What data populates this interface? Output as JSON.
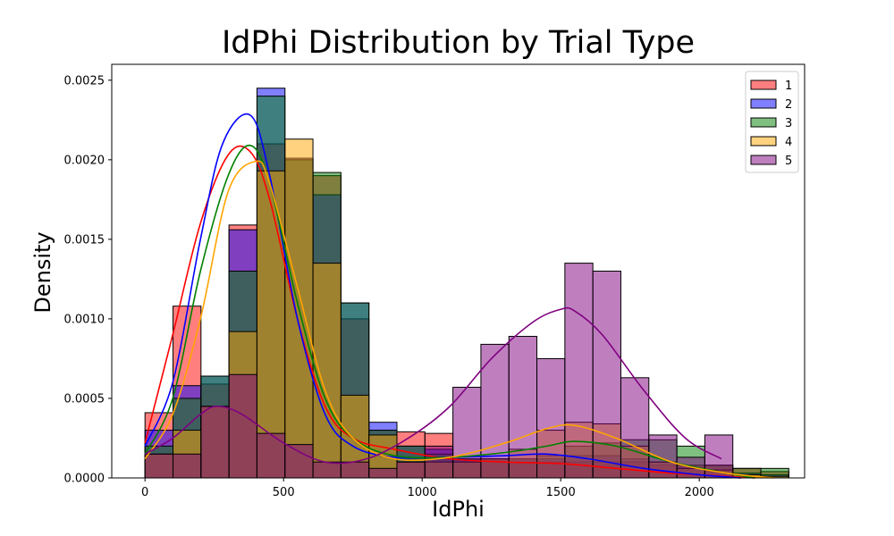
{
  "chart_data": {
    "type": "histogram",
    "title": "IdPhi Distribution by Trial Type",
    "xlabel": "IdPhi",
    "ylabel": "Density",
    "xlim": [
      -120,
      2380
    ],
    "ylim": [
      0,
      0.0026
    ],
    "xticks": [
      {
        "value": 0,
        "label": "0"
      },
      {
        "value": 500,
        "label": "500"
      },
      {
        "value": 1000,
        "label": "1000"
      },
      {
        "value": 1500,
        "label": "1500"
      },
      {
        "value": 2000,
        "label": "2000"
      }
    ],
    "yticks": [
      {
        "value": 0,
        "label": "0.0000"
      },
      {
        "value": 0.0005,
        "label": "0.0005"
      },
      {
        "value": 0.001,
        "label": "0.0010"
      },
      {
        "value": 0.0015,
        "label": "0.0015"
      },
      {
        "value": 0.002,
        "label": "0.0020"
      },
      {
        "value": 0.0025,
        "label": "0.0025"
      }
    ],
    "grid": false,
    "legend_position": "top-right",
    "bin_width": 101,
    "series": [
      {
        "name": "1",
        "color": "#ff0000",
        "opacity": 0.5,
        "bin_start": 0,
        "values": [
          0.00041,
          0.00108,
          0.00059,
          0.00159,
          0.0021,
          0.002,
          0.0019,
          0.001,
          0.0003,
          0.00029,
          0.00028,
          0.00012,
          0.00012,
          0.0001,
          0.0001,
          0.0001,
          0.0001,
          0.0001,
          8e-05,
          8e-05,
          8e-05,
          6e-05,
          4e-05
        ],
        "kde_x": [
          0,
          100,
          200,
          300,
          380,
          450,
          550,
          650,
          750,
          900,
          1100,
          1300,
          1500,
          1700,
          1900,
          2100,
          2200
        ],
        "kde_y": [
          0.00022,
          0.0009,
          0.0016,
          0.00203,
          0.00205,
          0.00175,
          0.001,
          0.00045,
          0.00025,
          0.00018,
          0.00012,
          0.0001,
          9e-05,
          6e-05,
          3e-05,
          1e-05,
          0.0
        ]
      },
      {
        "name": "2",
        "color": "#0000ff",
        "opacity": 0.5,
        "bin_start": 0,
        "values": [
          0.0003,
          0.00058,
          0.00064,
          0.00156,
          0.00245,
          0.00201,
          0.00178,
          0.0011,
          0.00035,
          0.0002,
          0.00018,
          0.00012,
          0.00012,
          0.00012,
          0.00012,
          0.00014,
          0.00014,
          0.00012,
          0.0001,
          6e-05,
          4e-05,
          3e-05,
          2e-05
        ],
        "kde_x": [
          0,
          100,
          200,
          280,
          380,
          450,
          550,
          650,
          750,
          900,
          1100,
          1300,
          1450,
          1600,
          1800,
          2000,
          2150
        ],
        "kde_y": [
          0.0002,
          0.0006,
          0.0015,
          0.0021,
          0.00228,
          0.0019,
          0.001,
          0.0004,
          0.0002,
          0.00013,
          0.00013,
          0.00014,
          0.00015,
          0.00012,
          6e-05,
          2e-05,
          0.0
        ]
      },
      {
        "name": "3",
        "color": "#008000",
        "opacity": 0.5,
        "bin_start": 0,
        "values": [
          0.0002,
          0.0005,
          0.00064,
          0.0013,
          0.0024,
          0.002,
          0.00192,
          0.0011,
          0.0003,
          0.0002,
          0.00015,
          0.00012,
          0.00012,
          0.00012,
          0.00014,
          0.0002,
          0.00022,
          0.00024,
          0.00024,
          0.0002,
          8e-05,
          6e-05,
          6e-05
        ],
        "kde_x": [
          0,
          100,
          200,
          300,
          380,
          450,
          550,
          650,
          750,
          900,
          1100,
          1300,
          1450,
          1550,
          1700,
          1900,
          2100,
          2200
        ],
        "kde_y": [
          0.00015,
          0.0005,
          0.0013,
          0.0019,
          0.00209,
          0.00185,
          0.0011,
          0.0005,
          0.00025,
          0.00014,
          0.00013,
          0.00016,
          0.0002,
          0.00023,
          0.0002,
          0.0001,
          3e-05,
          0.0
        ]
      },
      {
        "name": "4",
        "color": "#ffa500",
        "opacity": 0.5,
        "bin_start": 0,
        "values": [
          0.00015,
          0.0003,
          0.00045,
          0.00092,
          0.00193,
          0.00213,
          0.00135,
          0.00052,
          0.00027,
          0.0001,
          0.0001,
          0.0001,
          0.00012,
          0.00018,
          0.0003,
          0.00035,
          0.00034,
          0.0002,
          0.0001,
          6e-05,
          5e-05,
          2e-05,
          1e-05
        ],
        "kde_x": [
          0,
          100,
          200,
          300,
          400,
          450,
          550,
          650,
          750,
          900,
          1100,
          1300,
          1450,
          1550,
          1700,
          1900,
          2100,
          2270
        ],
        "kde_y": [
          0.00012,
          0.0004,
          0.001,
          0.0018,
          0.00199,
          0.00185,
          0.0012,
          0.00055,
          0.00025,
          0.00012,
          0.00013,
          0.00022,
          0.00031,
          0.00033,
          0.00025,
          0.0001,
          3e-05,
          0.0
        ]
      },
      {
        "name": "5",
        "color": "#800080",
        "opacity": 0.5,
        "bin_start": 0,
        "values": [
          0.00015,
          0.00015,
          0.00045,
          0.00065,
          0.00028,
          0.00021,
          0.0001,
          0.0001,
          6e-05,
          0.0001,
          0.0002,
          0.00057,
          0.00084,
          0.00089,
          0.00075,
          0.00135,
          0.0013,
          0.00063,
          0.00027,
          0.00013,
          0.00027
        ],
        "kde_x": [
          0,
          100,
          200,
          260,
          350,
          500,
          650,
          800,
          950,
          1100,
          1250,
          1400,
          1500,
          1550,
          1650,
          1800,
          1950,
          2080
        ],
        "kde_y": [
          0.00015,
          0.00025,
          0.0004,
          0.00045,
          0.0004,
          0.00022,
          0.0001,
          0.00012,
          0.00025,
          0.00045,
          0.00075,
          0.00098,
          0.00106,
          0.00105,
          0.0009,
          0.00055,
          0.00025,
          0.00012
        ]
      }
    ]
  }
}
